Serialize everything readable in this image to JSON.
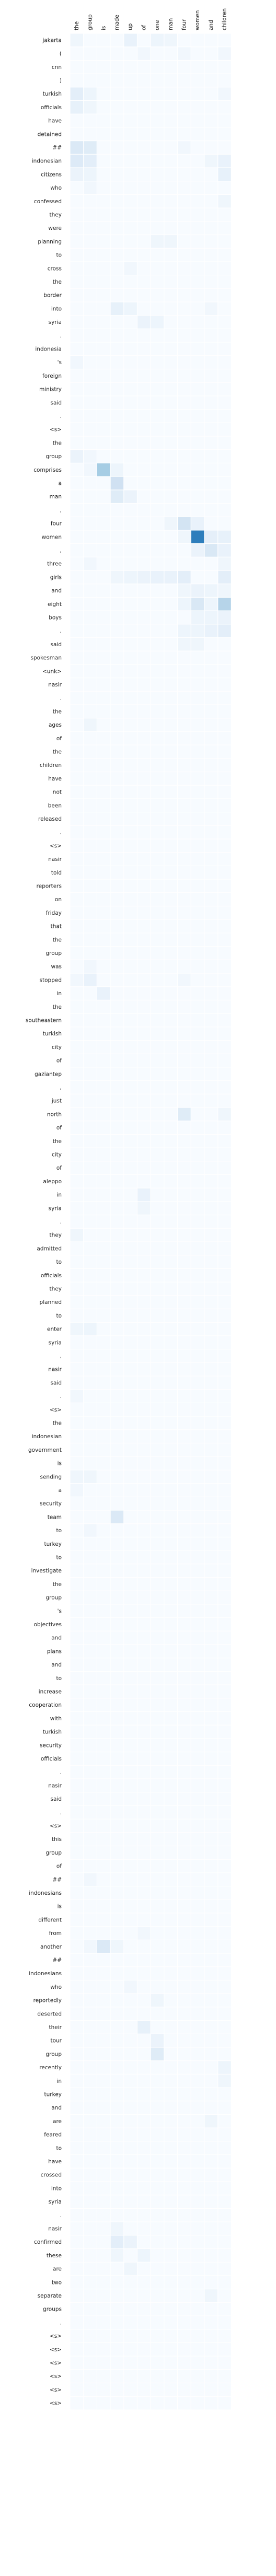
{
  "chart_data": {
    "type": "heatmap",
    "title": "",
    "xlabel": "",
    "ylabel": "",
    "colormap": "Blues",
    "value_range": [
      0,
      1
    ],
    "grid": false,
    "legend": "none",
    "x_labels": [
      "the",
      "group",
      "is",
      "made",
      "up",
      "of",
      "one",
      "man",
      "four",
      "women",
      "and",
      "children"
    ],
    "y_labels": [
      "jakarta",
      "(",
      "cnn",
      ")",
      "turkish",
      "officials",
      "have",
      "detained",
      "##",
      "indonesian",
      "citizens",
      "who",
      "confessed",
      "they",
      "were",
      "planning",
      "to",
      "cross",
      "the",
      "border",
      "into",
      "syria",
      ".",
      "indonesia",
      "'s",
      "foreign",
      "ministry",
      "said",
      ".",
      "<s>",
      "the",
      "group",
      "comprises",
      "a",
      "man",
      ",",
      "four",
      "women",
      ",",
      "three",
      "girls",
      "and",
      "eight",
      "boys",
      ",",
      "said",
      "spokesman",
      "<unk>",
      "nasir",
      ".",
      "the",
      "ages",
      "of",
      "the",
      "children",
      "have",
      "not",
      "been",
      "released",
      ".",
      "<s>",
      "nasir",
      "told",
      "reporters",
      "on",
      "friday",
      "that",
      "the",
      "group",
      "was",
      "stopped",
      "in",
      "the",
      "southeastern",
      "turkish",
      "city",
      "of",
      "gaziantep",
      ",",
      "just",
      "north",
      "of",
      "the",
      "city",
      "of",
      "aleppo",
      "in",
      "syria",
      ".",
      "they",
      "admitted",
      "to",
      "officials",
      "they",
      "planned",
      "to",
      "enter",
      "syria",
      ",",
      "nasir",
      "said",
      ".",
      "<s>",
      "the",
      "indonesian",
      "government",
      "is",
      "sending",
      "a",
      "security",
      "team",
      "to",
      "turkey",
      "to",
      "investigate",
      "the",
      "group",
      "'s",
      "objectives",
      "and",
      "plans",
      "and",
      "to",
      "increase",
      "cooperation",
      "with",
      "turkish",
      "security",
      "officials",
      ".",
      "nasir",
      "said",
      ".",
      "<s>",
      "this",
      "group",
      "of",
      "##",
      "indonesians",
      "is",
      "different",
      "from",
      "another",
      "##",
      "indonesians",
      "who",
      "reportedly",
      "deserted",
      "their",
      "tour",
      "group",
      "recently",
      "in",
      "turkey",
      "and",
      "are",
      "feared",
      "to",
      "have",
      "crossed",
      "into",
      "syria",
      ".",
      "nasir",
      "confirmed",
      "these",
      "are",
      "two",
      "separate",
      "groups",
      ".",
      "<s>",
      "<s>",
      "<s>",
      "<s>",
      "<s>",
      "<s>"
    ],
    "cells": [
      [
        0,
        0,
        0.04
      ],
      [
        0,
        4,
        0.07
      ],
      [
        0,
        6,
        0.05
      ],
      [
        0,
        7,
        0.04
      ],
      [
        1,
        5,
        0.03
      ],
      [
        1,
        8,
        0.03
      ],
      [
        1,
        11,
        0.03
      ],
      [
        4,
        0,
        0.1
      ],
      [
        4,
        1,
        0.05
      ],
      [
        4,
        11,
        0.03
      ],
      [
        5,
        0,
        0.08
      ],
      [
        5,
        1,
        0.04
      ],
      [
        8,
        0,
        0.14
      ],
      [
        8,
        1,
        0.12
      ],
      [
        8,
        8,
        0.03
      ],
      [
        9,
        0,
        0.13
      ],
      [
        9,
        1,
        0.1
      ],
      [
        9,
        10,
        0.04
      ],
      [
        9,
        11,
        0.07
      ],
      [
        10,
        0,
        0.06
      ],
      [
        10,
        1,
        0.05
      ],
      [
        10,
        11,
        0.08
      ],
      [
        11,
        1,
        0.03
      ],
      [
        12,
        11,
        0.04
      ],
      [
        15,
        6,
        0.04
      ],
      [
        15,
        7,
        0.04
      ],
      [
        17,
        4,
        0.03
      ],
      [
        20,
        3,
        0.08
      ],
      [
        20,
        4,
        0.05
      ],
      [
        20,
        10,
        0.03
      ],
      [
        21,
        5,
        0.06
      ],
      [
        21,
        6,
        0.05
      ],
      [
        24,
        0,
        0.03
      ],
      [
        31,
        0,
        0.06
      ],
      [
        31,
        1,
        0.03
      ],
      [
        32,
        1,
        0.03
      ],
      [
        32,
        2,
        0.35
      ],
      [
        32,
        3,
        0.05
      ],
      [
        33,
        3,
        0.2
      ],
      [
        34,
        3,
        0.12
      ],
      [
        34,
        4,
        0.06
      ],
      [
        36,
        7,
        0.04
      ],
      [
        36,
        8,
        0.18
      ],
      [
        36,
        9,
        0.07
      ],
      [
        37,
        8,
        0.04
      ],
      [
        37,
        9,
        0.7
      ],
      [
        37,
        10,
        0.09
      ],
      [
        37,
        11,
        0.08
      ],
      [
        38,
        9,
        0.06
      ],
      [
        38,
        10,
        0.15
      ],
      [
        38,
        11,
        0.07
      ],
      [
        39,
        1,
        0.03
      ],
      [
        39,
        11,
        0.04
      ],
      [
        40,
        3,
        0.04
      ],
      [
        40,
        4,
        0.05
      ],
      [
        40,
        5,
        0.06
      ],
      [
        40,
        6,
        0.07
      ],
      [
        40,
        7,
        0.07
      ],
      [
        40,
        8,
        0.1
      ],
      [
        40,
        11,
        0.1
      ],
      [
        41,
        8,
        0.04
      ],
      [
        41,
        9,
        0.06
      ],
      [
        41,
        10,
        0.05
      ],
      [
        41,
        11,
        0.04
      ],
      [
        42,
        8,
        0.05
      ],
      [
        42,
        9,
        0.15
      ],
      [
        42,
        10,
        0.05
      ],
      [
        42,
        11,
        0.3
      ],
      [
        43,
        9,
        0.05
      ],
      [
        43,
        10,
        0.05
      ],
      [
        43,
        11,
        0.06
      ],
      [
        44,
        8,
        0.05
      ],
      [
        44,
        9,
        0.05
      ],
      [
        44,
        10,
        0.07
      ],
      [
        44,
        11,
        0.1
      ],
      [
        45,
        8,
        0.04
      ],
      [
        45,
        9,
        0.04
      ],
      [
        51,
        1,
        0.04
      ],
      [
        69,
        1,
        0.03
      ],
      [
        70,
        0,
        0.03
      ],
      [
        70,
        1,
        0.07
      ],
      [
        70,
        8,
        0.03
      ],
      [
        71,
        2,
        0.07
      ],
      [
        80,
        8,
        0.12
      ],
      [
        80,
        11,
        0.04
      ],
      [
        86,
        5,
        0.07
      ],
      [
        87,
        5,
        0.04
      ],
      [
        89,
        0,
        0.04
      ],
      [
        96,
        0,
        0.04
      ],
      [
        96,
        1,
        0.05
      ],
      [
        101,
        0,
        0.03
      ],
      [
        107,
        0,
        0.04
      ],
      [
        107,
        1,
        0.04
      ],
      [
        108,
        0,
        0.03
      ],
      [
        110,
        3,
        0.14
      ],
      [
        111,
        1,
        0.03
      ],
      [
        137,
        1,
        0.03
      ],
      [
        141,
        5,
        0.03
      ],
      [
        142,
        1,
        0.03
      ],
      [
        142,
        2,
        0.14
      ],
      [
        142,
        3,
        0.04
      ],
      [
        145,
        4,
        0.03
      ],
      [
        146,
        6,
        0.04
      ],
      [
        148,
        5,
        0.08
      ],
      [
        149,
        6,
        0.06
      ],
      [
        150,
        6,
        0.12
      ],
      [
        151,
        11,
        0.05
      ],
      [
        152,
        11,
        0.04
      ],
      [
        155,
        10,
        0.04
      ],
      [
        163,
        3,
        0.04
      ],
      [
        164,
        3,
        0.1
      ],
      [
        164,
        4,
        0.06
      ],
      [
        165,
        3,
        0.04
      ],
      [
        165,
        5,
        0.05
      ],
      [
        166,
        4,
        0.04
      ],
      [
        168,
        10,
        0.04
      ]
    ]
  }
}
